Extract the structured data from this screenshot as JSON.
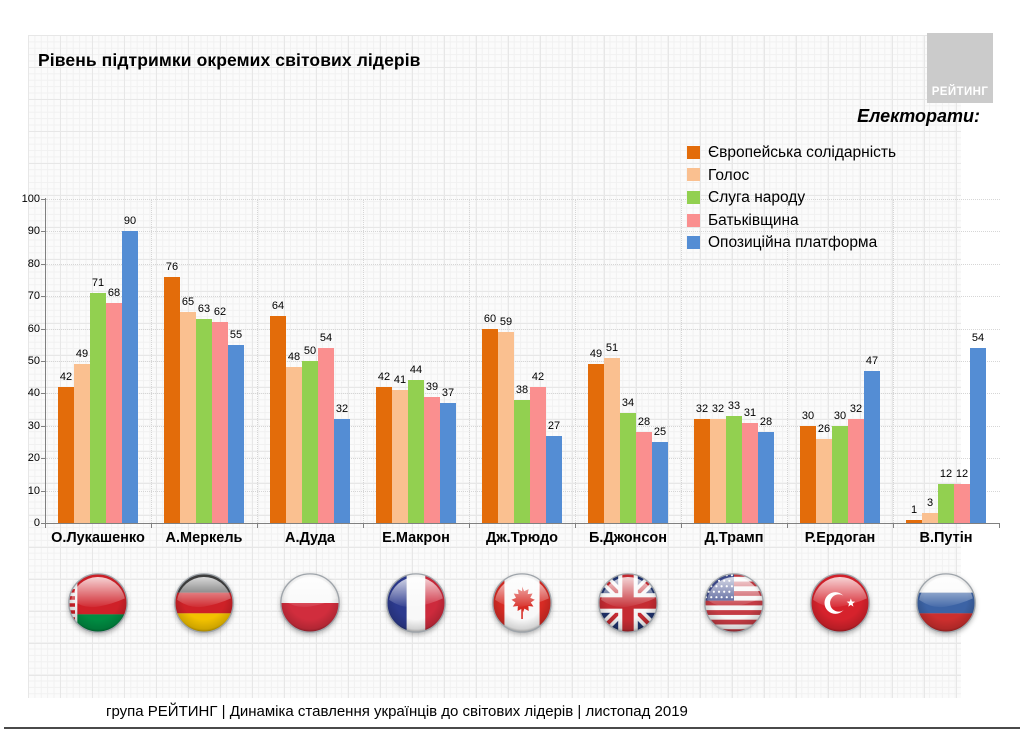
{
  "page": {
    "title": "Рівень підтримки окремих світових лідерів",
    "logo_text": "РЕЙТИНГ",
    "legend_title": "Електорати:",
    "footer": "група РЕЙТИНГ | Динаміка ставлення українців до світових лідерів  | листопад 2019"
  },
  "colors": {
    "axis": "#808080",
    "gridline": "#D6D6D6",
    "logo_background": "#CBCBCB",
    "text": "#000000",
    "series": [
      "#E36C0A",
      "#FAC090",
      "#92D050",
      "#FA8F8F",
      "#548DD4"
    ]
  },
  "chart_data": {
    "type": "bar",
    "title": "Рівень підтримки окремих світових лідерів",
    "xlabel": "",
    "ylabel": "",
    "ylim": [
      0,
      100
    ],
    "yticks": [
      0,
      10,
      20,
      30,
      40,
      50,
      60,
      70,
      80,
      90,
      100
    ],
    "grid": true,
    "legend_position": "top-right",
    "legend_title": "Електорати:",
    "categories": [
      "О.Лукашенко",
      "А.Меркель",
      "А.Дуда",
      "Е.Макрон",
      "Дж.Трюдо",
      "Б.Джонсон",
      "Д.Трамп",
      "Р.Ердоган",
      "В.Путін"
    ],
    "flags": [
      "belarus",
      "germany",
      "poland",
      "france",
      "canada",
      "uk",
      "usa",
      "turkey",
      "russia"
    ],
    "series": [
      {
        "name": "Європейська солідарність",
        "color": "#E36C0A",
        "values": [
          42,
          76,
          64,
          42,
          60,
          49,
          32,
          30,
          1
        ]
      },
      {
        "name": "Голос",
        "color": "#FAC090",
        "values": [
          49,
          65,
          48,
          41,
          59,
          51,
          32,
          26,
          3
        ]
      },
      {
        "name": "Слуга народу",
        "color": "#92D050",
        "values": [
          71,
          63,
          50,
          44,
          38,
          34,
          33,
          30,
          12
        ]
      },
      {
        "name": "Батьківщина",
        "color": "#FA8F8F",
        "values": [
          68,
          62,
          54,
          39,
          42,
          28,
          31,
          32,
          12
        ]
      },
      {
        "name": "Опозиційна платформа",
        "color": "#548DD4",
        "values": [
          90,
          55,
          32,
          37,
          27,
          25,
          28,
          47,
          54
        ]
      }
    ]
  }
}
